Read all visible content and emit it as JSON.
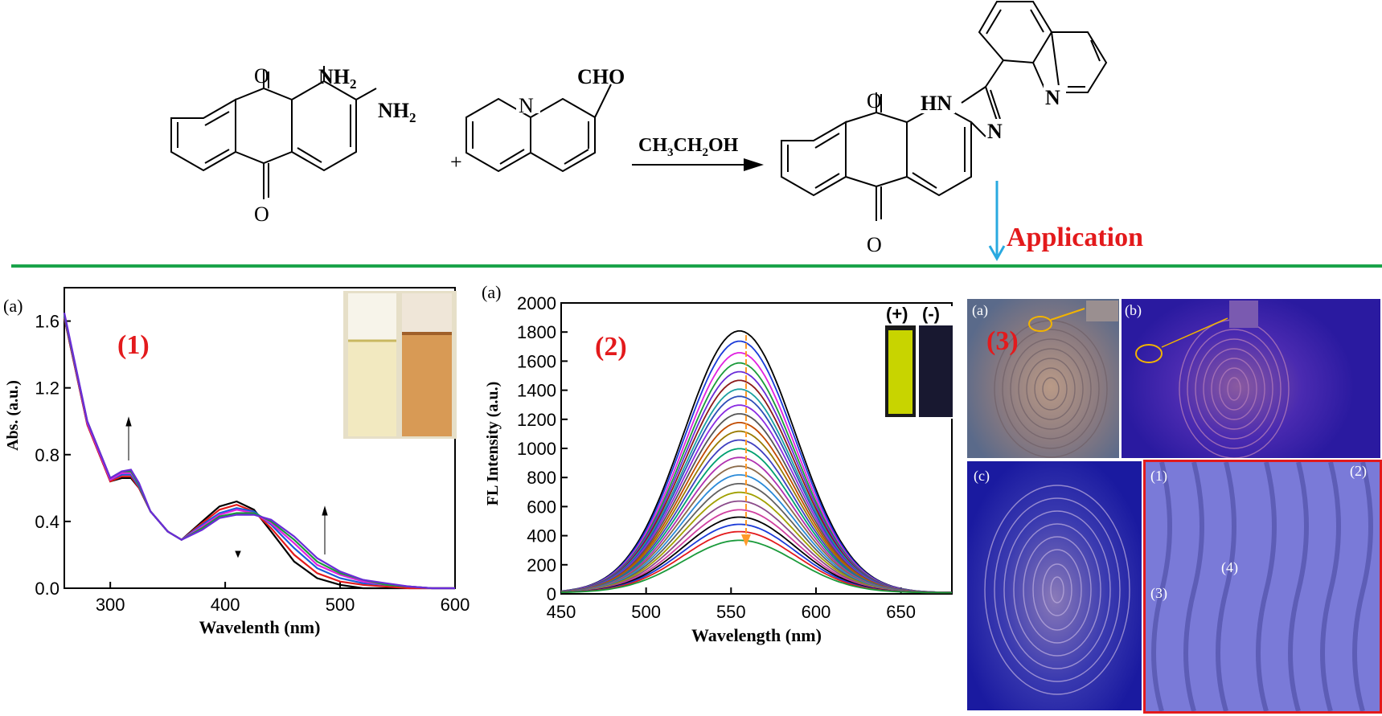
{
  "scheme": {
    "reactant1": {
      "carbonyl_top": "O",
      "carbonyl_bottom": "O",
      "amine1": "NH",
      "amine1_sub": "2",
      "amine2": "NH",
      "amine2_sub": "2"
    },
    "plus": "+",
    "reactant2": {
      "n_label": "N",
      "cho_label": "CHO"
    },
    "arrow_reagent": {
      "p1": "CH",
      "s1": "3",
      "p2": "CH",
      "s2": "2",
      "p3": "OH"
    },
    "product": {
      "carbonyl_top": "O",
      "carbonyl_bottom": "O",
      "hn_label": "HN",
      "n_imidazole": "N",
      "n_quinoline": "N"
    },
    "application_label": "Application",
    "colors": {
      "divider": "#1aa34a",
      "arrow": "#29a9e0",
      "red": "#e31a1c"
    }
  },
  "chart_data": [
    {
      "type": "line",
      "panel_tag": "(a)",
      "big_label": "(1)",
      "xlabel": "Wavelenth (nm)",
      "ylabel": "Abs. (a.u.)",
      "xlim": [
        260,
        600
      ],
      "ylim": [
        0,
        1.8
      ],
      "xticks": [
        "300",
        "400",
        "500",
        "600"
      ],
      "yticks": [
        "0.0",
        "0.4",
        "0.8",
        "1.2",
        "1.6"
      ],
      "x": [
        260,
        280,
        300,
        310,
        318,
        325,
        335,
        350,
        362,
        380,
        395,
        410,
        425,
        440,
        460,
        480,
        500,
        520,
        540,
        560,
        580,
        600
      ],
      "series": [
        {
          "color": "#000000",
          "values": [
            1.62,
            0.98,
            0.64,
            0.66,
            0.66,
            0.6,
            0.46,
            0.34,
            0.29,
            0.4,
            0.49,
            0.52,
            0.47,
            0.34,
            0.16,
            0.06,
            0.02,
            0.0,
            0.0,
            0.0,
            0.0,
            0.0
          ]
        },
        {
          "color": "#e31a1c",
          "values": [
            1.62,
            0.98,
            0.64,
            0.67,
            0.67,
            0.6,
            0.46,
            0.34,
            0.29,
            0.39,
            0.47,
            0.5,
            0.46,
            0.36,
            0.2,
            0.09,
            0.04,
            0.02,
            0.01,
            0.0,
            0.0,
            0.0
          ]
        },
        {
          "color": "#1a5dd8",
          "values": [
            1.63,
            0.99,
            0.65,
            0.68,
            0.68,
            0.61,
            0.46,
            0.34,
            0.29,
            0.38,
            0.45,
            0.48,
            0.46,
            0.38,
            0.24,
            0.12,
            0.06,
            0.03,
            0.02,
            0.01,
            0.0,
            0.0
          ]
        },
        {
          "color": "#e020e0",
          "values": [
            1.64,
            0.99,
            0.65,
            0.69,
            0.69,
            0.62,
            0.46,
            0.34,
            0.29,
            0.37,
            0.44,
            0.47,
            0.45,
            0.39,
            0.27,
            0.14,
            0.08,
            0.04,
            0.02,
            0.01,
            0.0,
            0.0
          ]
        },
        {
          "color": "#1a9a3a",
          "values": [
            1.64,
            1.0,
            0.66,
            0.7,
            0.7,
            0.62,
            0.46,
            0.34,
            0.29,
            0.36,
            0.43,
            0.45,
            0.45,
            0.4,
            0.29,
            0.16,
            0.09,
            0.05,
            0.02,
            0.01,
            0.0,
            0.0
          ]
        },
        {
          "color": "#6a2bd8",
          "values": [
            1.65,
            1.0,
            0.66,
            0.7,
            0.71,
            0.63,
            0.46,
            0.34,
            0.29,
            0.35,
            0.42,
            0.44,
            0.44,
            0.41,
            0.31,
            0.18,
            0.1,
            0.05,
            0.03,
            0.01,
            0.0,
            0.0
          ]
        }
      ],
      "inset": {
        "left_color": "#f2e9c0",
        "right_color": "#d89a55"
      }
    },
    {
      "type": "line",
      "panel_tag": "(a)",
      "big_label": "(2)",
      "xlabel": "Wavelength (nm)",
      "ylabel": "FL Intensity (a.u.)",
      "xlim": [
        450,
        680
      ],
      "ylim": [
        0,
        2000
      ],
      "xticks": [
        "450",
        "500",
        "550",
        "600",
        "650"
      ],
      "yticks": [
        "0",
        "200",
        "400",
        "600",
        "800",
        "1000",
        "1200",
        "1400",
        "1600",
        "1800",
        "2000"
      ],
      "peak_x": 555,
      "peaks": [
        1800,
        1730,
        1650,
        1580,
        1520,
        1460,
        1400,
        1350,
        1290,
        1230,
        1170,
        1110,
        1050,
        990,
        930,
        870,
        810,
        750,
        690,
        630,
        570,
        520,
        470,
        420,
        360
      ],
      "colors": [
        "#000000",
        "#1a3ad8",
        "#e020e0",
        "#1a9a3a",
        "#6a2bd8",
        "#8b1a1a",
        "#1aa0a0",
        "#2d4db8",
        "#8a2be2",
        "#555555",
        "#c04a00",
        "#9a7a00",
        "#4040c0",
        "#00a070",
        "#b030b0",
        "#8b6a4a",
        "#2a8ad8",
        "#606060",
        "#a0a000",
        "#8a4a8a",
        "#d040a0",
        "#000000",
        "#1a3ad8",
        "#e31a1c",
        "#1a9a3a"
      ],
      "insets": {
        "plus_label": "(+)",
        "minus_label": "(-)",
        "plus_color": "#c8d400",
        "minus_color": "#181830"
      },
      "arrow_color": "#ff9a2a"
    }
  ],
  "fingerprints": {
    "big_label": "(3)",
    "panels": [
      {
        "label": "(a)"
      },
      {
        "label": "(b)"
      },
      {
        "label": "(c)"
      }
    ],
    "zoom_labels": [
      "(1)",
      "(2)",
      "(3)",
      "(4)"
    ]
  }
}
